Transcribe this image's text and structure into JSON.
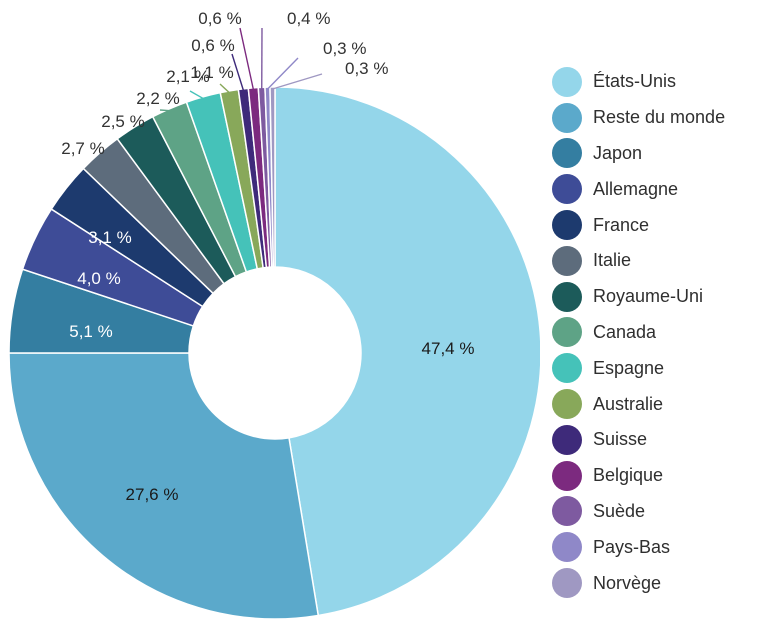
{
  "chart_data": {
    "type": "pie",
    "donut": true,
    "legend_position": "right",
    "slices": [
      {
        "label": "États-Unis",
        "value": 47.4,
        "display": "47,4 %",
        "color": "#94d6ea",
        "label_color": "#1a1a1a"
      },
      {
        "label": "Reste du monde",
        "value": 27.6,
        "display": "27,6 %",
        "color": "#5ba9cb",
        "label_color": "#1a1a1a"
      },
      {
        "label": "Japon",
        "value": 5.1,
        "display": "5,1 %",
        "color": "#347ea1",
        "label_color": "#ffffff"
      },
      {
        "label": "Allemagne",
        "value": 4.0,
        "display": "4,0 %",
        "color": "#3e4c97",
        "label_color": "#ffffff"
      },
      {
        "label": "France",
        "value": 3.1,
        "display": "3,1 %",
        "color": "#1d3a6e",
        "label_color": "#ffffff"
      },
      {
        "label": "Italie",
        "value": 2.7,
        "display": "2,7 %",
        "color": "#5d6c7c",
        "label_color": "#333333"
      },
      {
        "label": "Royaume-Uni",
        "value": 2.5,
        "display": "2,5 %",
        "color": "#1c5b5a",
        "label_color": "#333333"
      },
      {
        "label": "Canada",
        "value": 2.2,
        "display": "2,2 %",
        "color": "#5ea386",
        "label_color": "#333333"
      },
      {
        "label": "Espagne",
        "value": 2.1,
        "display": "2,1 %",
        "color": "#45c2b9",
        "label_color": "#333333"
      },
      {
        "label": "Australie",
        "value": 1.1,
        "display": "1,1 %",
        "color": "#88a85a",
        "label_color": "#333333"
      },
      {
        "label": "Suisse",
        "value": 0.6,
        "display": "0,6 %",
        "color": "#3e2a7a",
        "label_color": "#333333"
      },
      {
        "label": "Belgique",
        "value": 0.6,
        "display": "0,6 %",
        "color": "#7c2a7f",
        "label_color": "#333333"
      },
      {
        "label": "Suède",
        "value": 0.4,
        "display": "0,4 %",
        "color": "#7e5aa0",
        "label_color": "#333333"
      },
      {
        "label": "Pays-Bas",
        "value": 0.3,
        "display": "0,3 %",
        "color": "#8f88c8",
        "label_color": "#333333"
      },
      {
        "label": "Norvège",
        "value": 0.3,
        "display": "0,3 %",
        "color": "#9f98c2",
        "label_color": "#333333"
      }
    ]
  }
}
